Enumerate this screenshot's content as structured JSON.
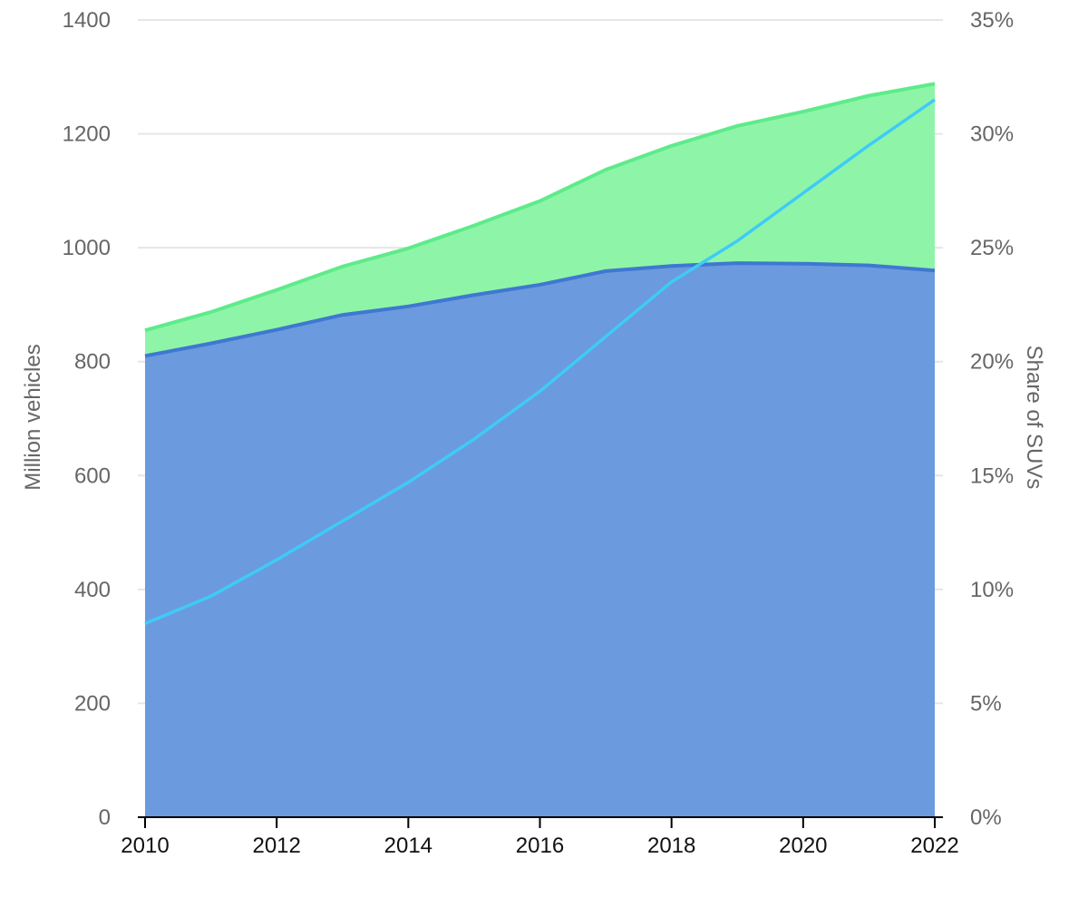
{
  "chart_data": {
    "type": "area",
    "x": [
      2010,
      2011,
      2012,
      2013,
      2014,
      2015,
      2016,
      2017,
      2018,
      2019,
      2020,
      2021,
      2022
    ],
    "x_ticks": [
      "2010",
      "2012",
      "2014",
      "2016",
      "2018",
      "2020",
      "2022"
    ],
    "series": [
      {
        "kind": "stacked-area",
        "axis": "left",
        "color": "#6c9ade",
        "line_color": "#3f78d1",
        "values": [
          810,
          832,
          856,
          882,
          897,
          917,
          935,
          959,
          968,
          973,
          972,
          969,
          960
        ]
      },
      {
        "kind": "stacked-area",
        "axis": "left",
        "color": "#8ef5a8",
        "line_color": "#5eeb8a",
        "values": [
          45,
          55,
          70,
          85,
          102,
          122,
          147,
          178,
          211,
          241,
          267,
          298,
          328
        ]
      },
      {
        "kind": "line",
        "axis": "right",
        "color": "#3ecbf7",
        "values": [
          8.5,
          9.7,
          11.3,
          13.0,
          14.7,
          16.6,
          18.7,
          21.1,
          23.5,
          25.3,
          27.4,
          29.5,
          31.5
        ]
      }
    ],
    "y_left": {
      "label": "Million vehicles",
      "ylim": [
        0,
        1400
      ],
      "ticks": [
        "0",
        "200",
        "400",
        "600",
        "800",
        "1000",
        "1200",
        "1400"
      ]
    },
    "y_right": {
      "label": "Share of SUVs",
      "ylim": [
        0,
        35
      ],
      "ticks": [
        "0%",
        "5%",
        "10%",
        "15%",
        "20%",
        "25%",
        "30%",
        "35%"
      ]
    },
    "grid": true,
    "gridline_color": "#e6e6e6",
    "axis_color": "#000000"
  }
}
